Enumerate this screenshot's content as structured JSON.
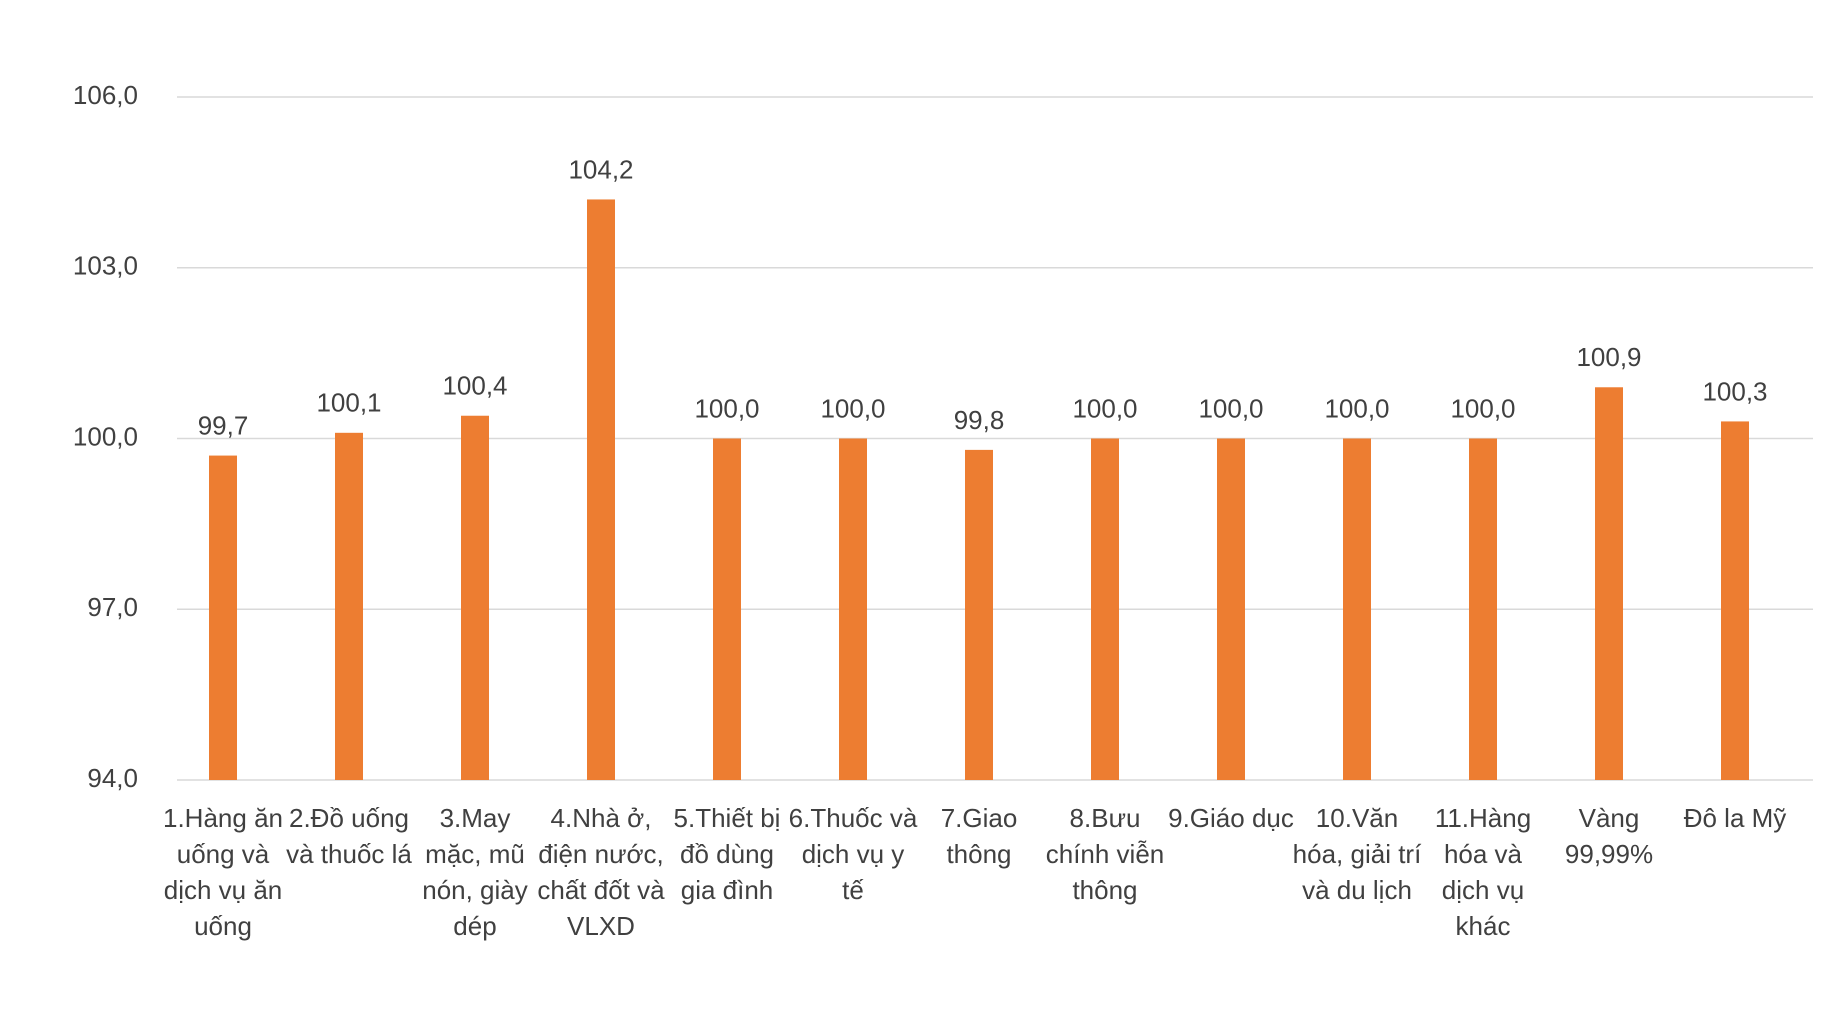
{
  "chart_data": {
    "type": "bar",
    "categories": [
      "1.Hàng ăn uống và dịch vụ ăn uống",
      "2.Đồ uống và thuốc lá",
      "3.May mặc, mũ nón, giày dép",
      "4.Nhà ở, điện nước, chất đốt và VLXD",
      "5.Thiết bị đồ dùng gia đình",
      "6.Thuốc và dịch vụ y tế",
      "7.Giao thông",
      "8.Bưu chính viễn thông",
      "9.Giáo dục",
      "10.Văn hóa, giải trí và du lịch",
      "11.Hàng hóa và dịch vụ khác",
      "Vàng 99,99%",
      "Đô la Mỹ"
    ],
    "values": [
      99.7,
      100.1,
      100.4,
      104.2,
      100.0,
      100.0,
      99.8,
      100.0,
      100.0,
      100.0,
      100.0,
      100.9,
      100.3
    ],
    "value_labels": [
      "99,7",
      "100,1",
      "100,4",
      "104,2",
      "100,0",
      "100,0",
      "99,8",
      "100,0",
      "100,0",
      "100,0",
      "100,0",
      "100,9",
      "100,3"
    ],
    "color": "#ed7d31",
    "ylim": [
      94,
      106
    ],
    "yticks": [
      {
        "value": 94,
        "label": "94,0"
      },
      {
        "value": 97,
        "label": "97,0"
      },
      {
        "value": 100,
        "label": "100,0"
      },
      {
        "value": 103,
        "label": "103,0"
      },
      {
        "value": 106,
        "label": "106,0"
      }
    ],
    "grid": true
  }
}
